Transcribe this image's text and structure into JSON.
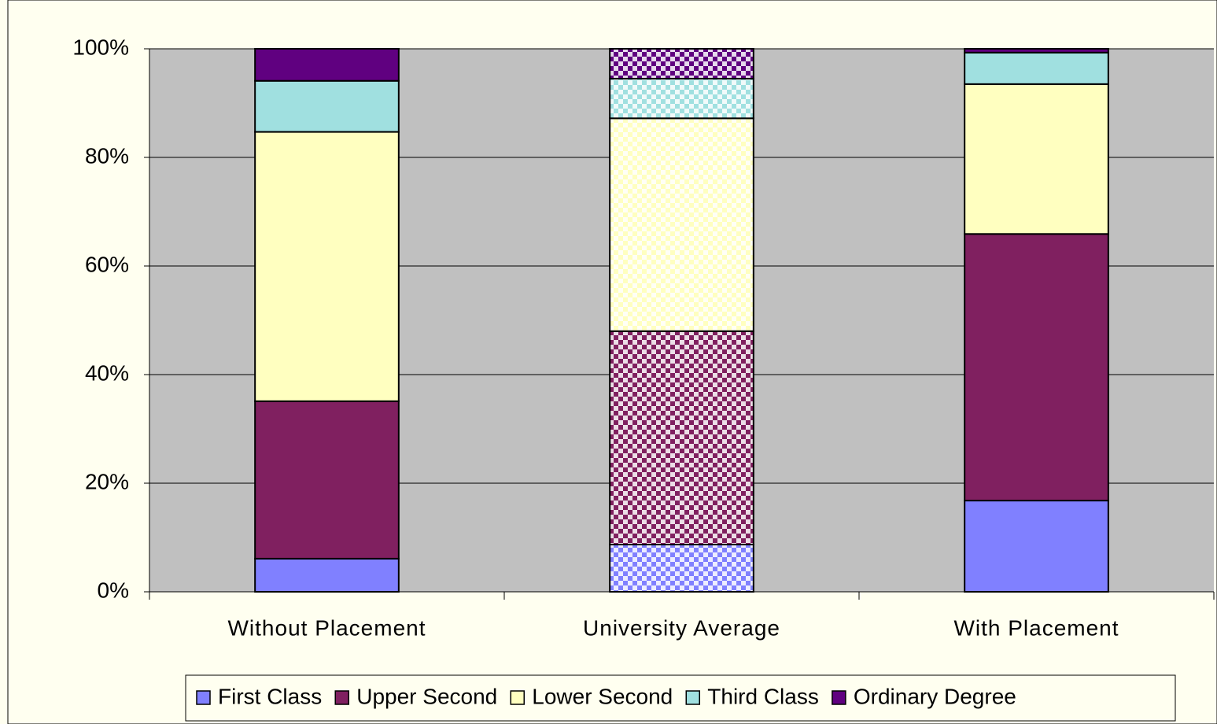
{
  "chart_data": {
    "type": "stacked_bar",
    "categories": [
      "Without Placement",
      "University Average",
      "With Placement"
    ],
    "patterned": [
      false,
      true,
      false
    ],
    "series": [
      {
        "name": "First Class",
        "color": "#8080ff",
        "values": [
          6.1,
          8.7,
          16.8
        ]
      },
      {
        "name": "Upper Second",
        "color": "#802060",
        "values": [
          29,
          39.3,
          49.1
        ]
      },
      {
        "name": "Lower Second",
        "color": "#ffffc0",
        "values": [
          49.6,
          39.2,
          27.6
        ]
      },
      {
        "name": "Third Class",
        "color": "#a0e0e0",
        "values": [
          9.4,
          7.3,
          5.8
        ]
      },
      {
        "name": "Ordinary Degree",
        "color": "#600080",
        "values": [
          5.9,
          5.5,
          0.7
        ]
      }
    ],
    "ylim": [
      0,
      100
    ],
    "yticks": [
      {
        "value": 0,
        "label": "0%"
      },
      {
        "value": 20,
        "label": "20%"
      },
      {
        "value": 40,
        "label": "40%"
      },
      {
        "value": 60,
        "label": "60%"
      },
      {
        "value": 80,
        "label": "80%"
      },
      {
        "value": 100,
        "label": "100%"
      }
    ],
    "grid": true,
    "plot_background": "#c0c0c0",
    "legend": "bottom"
  }
}
